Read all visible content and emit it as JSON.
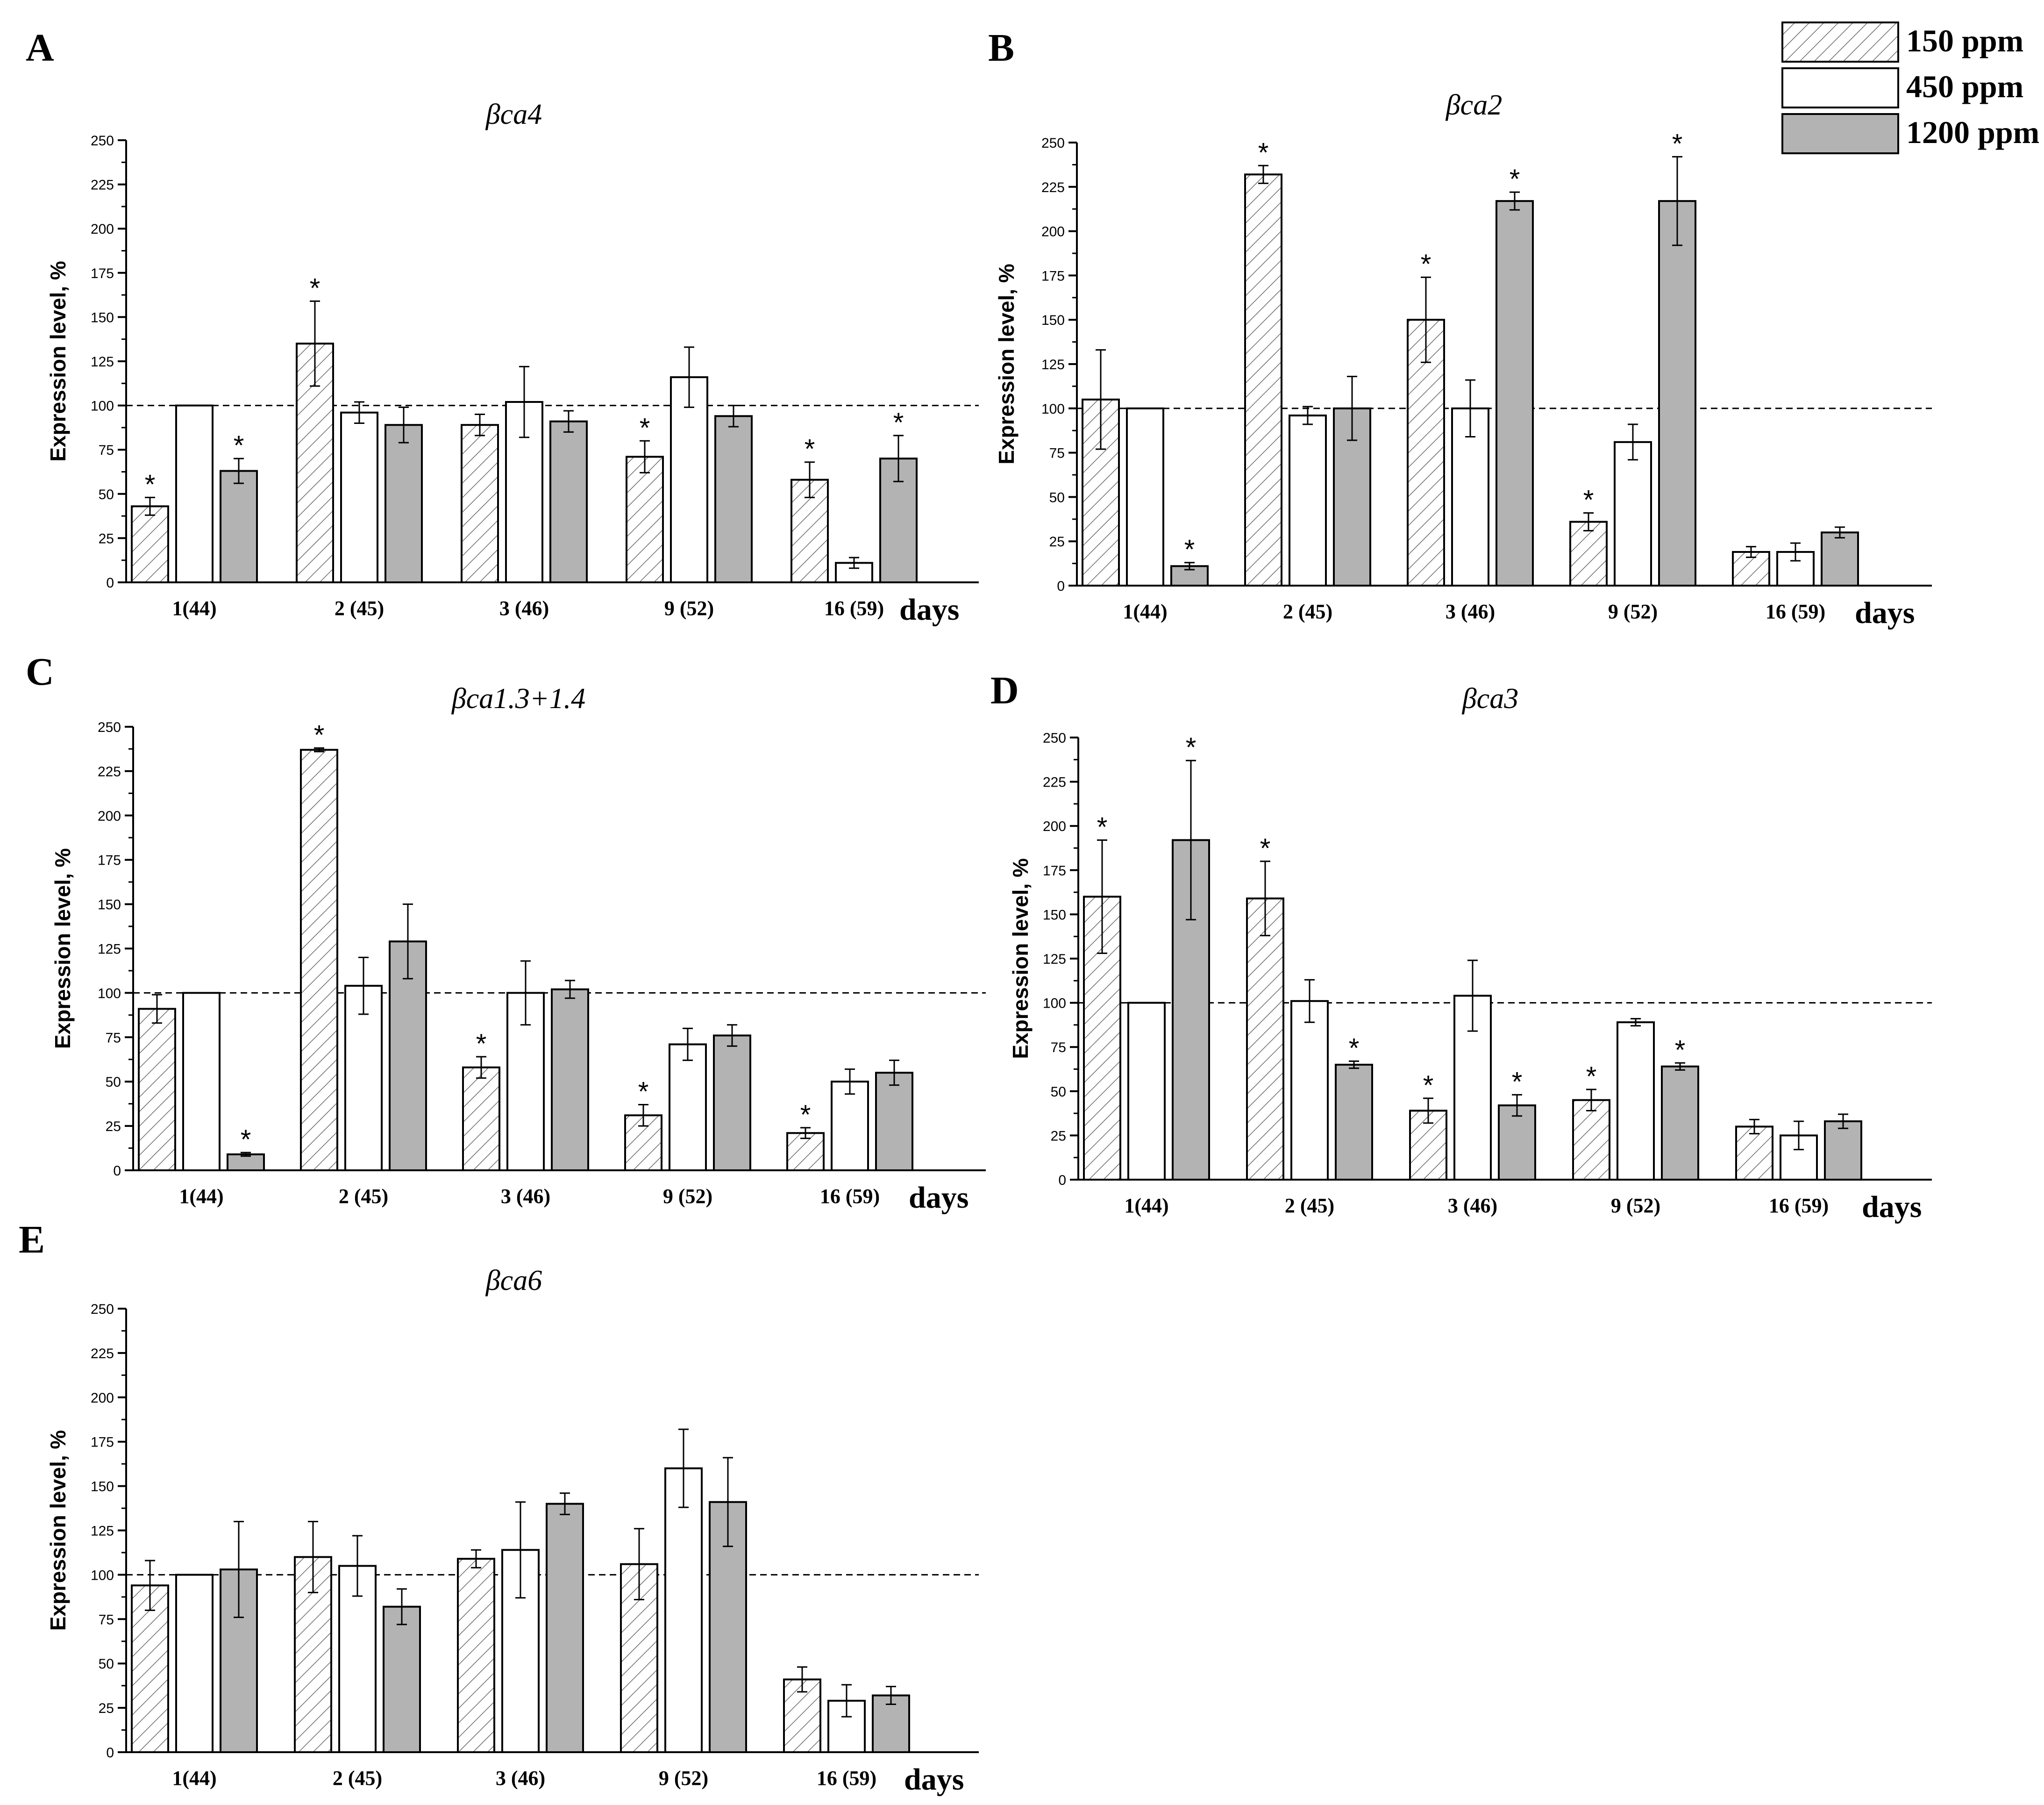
{
  "legend": {
    "entries": [
      {
        "label": "150 ppm",
        "style": "hatched",
        "color": "#ffffff"
      },
      {
        "label": "450 ppm",
        "style": "white",
        "color": "#ffffff"
      },
      {
        "label": "1200 ppm",
        "style": "gray",
        "color": "#b3b3b3"
      }
    ]
  },
  "chart_data": [
    {
      "type": "bar",
      "panel": "A",
      "title": "βca4",
      "ylabel": "Expression level, %",
      "xlabel": "days",
      "ylim": [
        0,
        250
      ],
      "yticks": [
        0,
        25,
        50,
        75,
        100,
        125,
        150,
        175,
        200,
        225,
        250
      ],
      "reference_line": 100,
      "categories": [
        "1(44)",
        "2 (45)",
        "3 (46)",
        "9 (52)",
        "16 (59)"
      ],
      "series": [
        {
          "name": "150 ppm",
          "values": [
            43,
            135,
            89,
            71,
            58
          ],
          "errors": [
            5,
            24,
            6,
            9,
            10
          ],
          "significant": [
            true,
            true,
            false,
            true,
            true
          ]
        },
        {
          "name": "450 ppm",
          "values": [
            100,
            96,
            102,
            116,
            11
          ],
          "errors": [
            0,
            6,
            20,
            17,
            3
          ],
          "significant": [
            false,
            false,
            false,
            false,
            false
          ]
        },
        {
          "name": "1200 ppm",
          "values": [
            63,
            89,
            91,
            94,
            70
          ],
          "errors": [
            7,
            10,
            6,
            6,
            13
          ],
          "significant": [
            true,
            false,
            false,
            false,
            true
          ]
        }
      ]
    },
    {
      "type": "bar",
      "panel": "B",
      "title": "βca2",
      "ylabel": "Expression level, %",
      "xlabel": "days",
      "ylim": [
        0,
        250
      ],
      "yticks": [
        0,
        25,
        50,
        75,
        100,
        125,
        150,
        175,
        200,
        225,
        250
      ],
      "reference_line": 100,
      "categories": [
        "1(44)",
        "2 (45)",
        "3 (46)",
        "9 (52)",
        "16 (59)"
      ],
      "series": [
        {
          "name": "150 ppm",
          "values": [
            105,
            232,
            150,
            36,
            19
          ],
          "errors": [
            28,
            5,
            24,
            5,
            3
          ],
          "significant": [
            false,
            true,
            true,
            true,
            false
          ]
        },
        {
          "name": "450 ppm",
          "values": [
            100,
            96,
            100,
            81,
            19
          ],
          "errors": [
            0,
            5,
            16,
            10,
            5
          ],
          "significant": [
            false,
            false,
            false,
            false,
            false
          ]
        },
        {
          "name": "1200 ppm",
          "values": [
            11,
            100,
            217,
            217,
            30
          ],
          "errors": [
            2,
            18,
            5,
            25,
            3
          ],
          "significant": [
            true,
            false,
            true,
            true,
            false
          ]
        }
      ]
    },
    {
      "type": "bar",
      "panel": "C",
      "title": "βca1.3+1.4",
      "ylabel": "Expression level, %",
      "xlabel": "days",
      "ylim": [
        0,
        250
      ],
      "yticks": [
        0,
        25,
        50,
        75,
        100,
        125,
        150,
        175,
        200,
        225,
        250
      ],
      "reference_line": 100,
      "categories": [
        "1(44)",
        "2 (45)",
        "3 (46)",
        "9 (52)",
        "16 (59)"
      ],
      "series": [
        {
          "name": "150 ppm",
          "values": [
            91,
            237,
            58,
            31,
            21
          ],
          "errors": [
            8,
            1,
            6,
            6,
            3
          ],
          "significant": [
            false,
            true,
            true,
            true,
            true
          ]
        },
        {
          "name": "450 ppm",
          "values": [
            100,
            104,
            100,
            71,
            50
          ],
          "errors": [
            0,
            16,
            18,
            9,
            7
          ],
          "significant": [
            false,
            false,
            false,
            false,
            false
          ]
        },
        {
          "name": "1200 ppm",
          "values": [
            9,
            129,
            102,
            76,
            55
          ],
          "errors": [
            1,
            21,
            5,
            6,
            7
          ],
          "significant": [
            true,
            false,
            false,
            false,
            false
          ]
        }
      ]
    },
    {
      "type": "bar",
      "panel": "D",
      "title": "βca3",
      "ylabel": "Expression level, %",
      "xlabel": "days",
      "ylim": [
        0,
        250
      ],
      "yticks": [
        0,
        25,
        50,
        75,
        100,
        125,
        150,
        175,
        200,
        225,
        250
      ],
      "reference_line": 100,
      "categories": [
        "1(44)",
        "2 (45)",
        "3 (46)",
        "9 (52)",
        "16 (59)"
      ],
      "series": [
        {
          "name": "150 ppm",
          "values": [
            160,
            159,
            39,
            45,
            30
          ],
          "errors": [
            32,
            21,
            7,
            6,
            4
          ],
          "significant": [
            true,
            true,
            true,
            true,
            false
          ]
        },
        {
          "name": "450 ppm",
          "values": [
            100,
            101,
            104,
            89,
            25
          ],
          "errors": [
            0,
            12,
            20,
            2,
            8
          ],
          "significant": [
            false,
            false,
            false,
            false,
            false
          ]
        },
        {
          "name": "1200 ppm",
          "values": [
            192,
            65,
            42,
            64,
            33
          ],
          "errors": [
            45,
            2,
            6,
            2,
            4
          ],
          "significant": [
            true,
            true,
            true,
            true,
            false
          ]
        }
      ]
    },
    {
      "type": "bar",
      "panel": "E",
      "title": "βca6",
      "ylabel": "Expression level, %",
      "xlabel": "days",
      "ylim": [
        0,
        250
      ],
      "yticks": [
        0,
        25,
        50,
        75,
        100,
        125,
        150,
        175,
        200,
        225,
        250
      ],
      "reference_line": 100,
      "categories": [
        "1(44)",
        "2 (45)",
        "3 (46)",
        "9 (52)",
        "16 (59)"
      ],
      "series": [
        {
          "name": "150 ppm",
          "values": [
            94,
            110,
            109,
            106,
            41
          ],
          "errors": [
            14,
            20,
            5,
            20,
            7
          ],
          "significant": [
            false,
            false,
            false,
            false,
            false
          ]
        },
        {
          "name": "450 ppm",
          "values": [
            100,
            105,
            114,
            160,
            29
          ],
          "errors": [
            0,
            17,
            27,
            22,
            9
          ],
          "significant": [
            false,
            false,
            false,
            false,
            false
          ]
        },
        {
          "name": "1200 ppm",
          "values": [
            103,
            82,
            140,
            141,
            32
          ],
          "errors": [
            27,
            10,
            6,
            25,
            5
          ],
          "significant": [
            false,
            false,
            false,
            false,
            false
          ]
        }
      ]
    }
  ]
}
